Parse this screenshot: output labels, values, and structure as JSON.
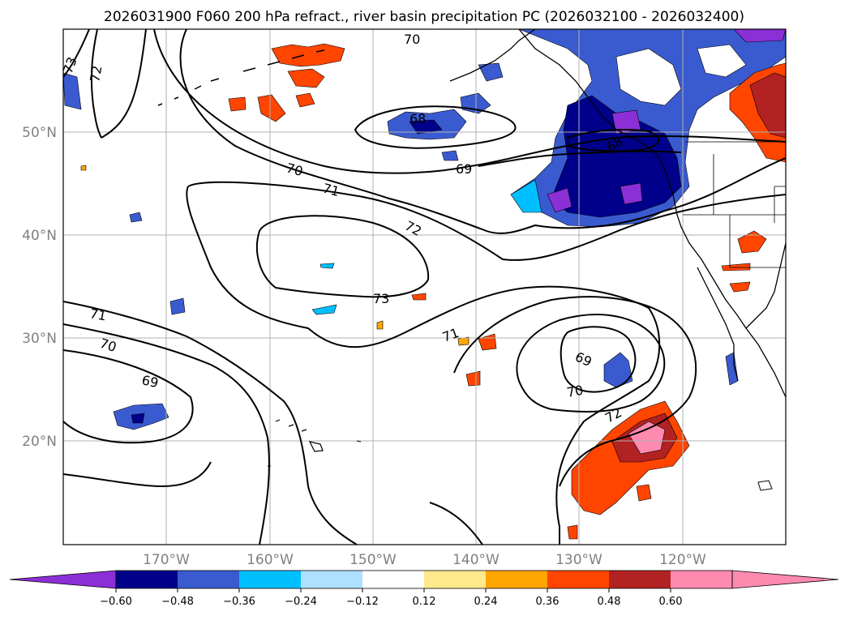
{
  "title": "2026031900 F060 200 hPa refract., river basin precipitation PC (2026032100 - 2026032400)",
  "map": {
    "lon_range": [
      -180,
      -110
    ],
    "lat_range": [
      10,
      60
    ],
    "lat_ticks": [
      {
        "lat": 50,
        "label": "50°N"
      },
      {
        "lat": 40,
        "label": "40°N"
      },
      {
        "lat": 30,
        "label": "30°N"
      },
      {
        "lat": 20,
        "label": "20°N"
      }
    ],
    "lon_ticks": [
      {
        "lon": -170,
        "label": "170°W"
      },
      {
        "lon": -160,
        "label": "160°W"
      },
      {
        "lon": -150,
        "label": "150°W"
      },
      {
        "lon": -140,
        "label": "140°W"
      },
      {
        "lon": -130,
        "label": "130°W"
      },
      {
        "lon": -120,
        "label": "120°W"
      }
    ],
    "contour_labels": [
      "73",
      "72",
      "70",
      "68",
      "69",
      "70",
      "71",
      "72",
      "73",
      "71",
      "71",
      "70",
      "69",
      "69",
      "70",
      "72",
      "68"
    ]
  },
  "colorbar": {
    "colors": [
      "#8b2fd6",
      "#00008b",
      "#3a5bd0",
      "#00bfff",
      "#aee0ff",
      "#ffffff",
      "#ffe98a",
      "#ffa500",
      "#ff4500",
      "#b22222",
      "#ff8ab0",
      "#ff8ab0"
    ],
    "ticks": [
      "−0.60",
      "−0.48",
      "−0.36",
      "−0.24",
      "−0.12",
      "0.12",
      "0.24",
      "0.36",
      "0.48",
      "0.60"
    ]
  },
  "colors": {
    "neg_purple": "#8b2fd6",
    "neg_navy": "#00008b",
    "neg_blue": "#3a5bd0",
    "neg_cyan": "#00bfff",
    "neg_light": "#aee0ff",
    "pos_yellow": "#ffe98a",
    "pos_orange": "#ffa500",
    "pos_red": "#ff4500",
    "pos_brick": "#b22222",
    "pos_pink": "#ff8ab0"
  }
}
